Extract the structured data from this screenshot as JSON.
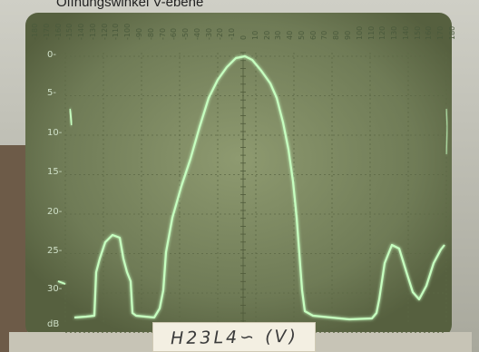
{
  "caption": "Öffnungswinkel V-ebene",
  "sticker_text": "H23L4∽ (V)",
  "screen": {
    "y_ticks": [
      "0-",
      "5-",
      "10-",
      "15-",
      "20-",
      "25-",
      "30-",
      "dB"
    ],
    "x_ticks": [
      "-180",
      "-170",
      "-160",
      "-150",
      "-140",
      "-130",
      "-120",
      "-110",
      "-100",
      "-90",
      "-80",
      "-70",
      "-60",
      "-50",
      "-40",
      "-30",
      "-20",
      "-10",
      "0",
      "10",
      "20",
      "30",
      "40",
      "50",
      "60",
      "70",
      "80",
      "90",
      "100",
      "110",
      "120",
      "130",
      "140",
      "150",
      "160",
      "170",
      "180"
    ],
    "trace_color": "#c6ffc0",
    "grid_color": "#6d7a55",
    "screen_color": "#7e8b62"
  }
}
